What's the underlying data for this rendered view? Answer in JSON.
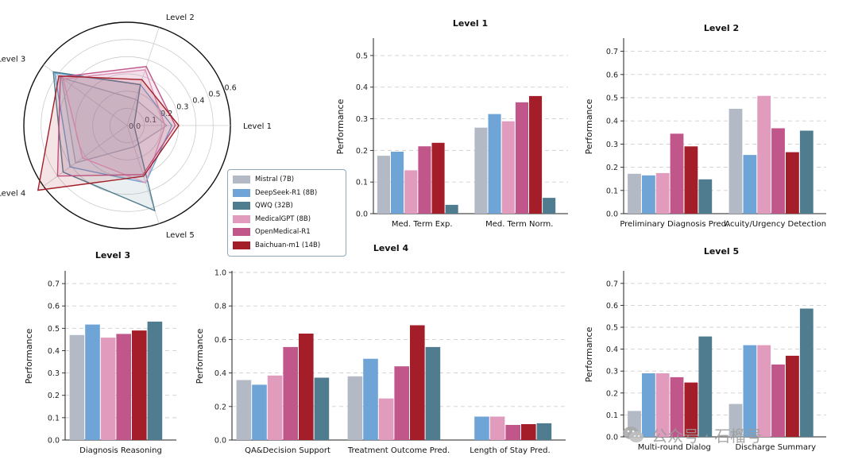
{
  "colors": {
    "Mistral": "#b3bac5",
    "DeepSeek": "#6fa5d6",
    "QWQ": "#4f7d8f",
    "MedicalGPT": "#e09bbd",
    "OpenMedical": "#c0568a",
    "Baichuan": "#a31e28"
  },
  "legend": [
    {
      "label": "Mistral (7B)",
      "color": "#b3bac5"
    },
    {
      "label": "DeepSeek-R1 (8B)",
      "color": "#6fa5d6"
    },
    {
      "label": "QWQ (32B)",
      "color": "#4f7d8f"
    },
    {
      "label": "MedicalGPT (8B)",
      "color": "#e09bbd"
    },
    {
      "label": "OpenMedical-R1",
      "color": "#c0568a"
    },
    {
      "label": "Baichuan-m1 (14B)",
      "color": "#a31e28"
    }
  ],
  "watermark": {
    "text": "公众号 · 石榴号",
    "icon": "wechat-icon"
  },
  "chart_data": [
    {
      "type": "radar",
      "axes": [
        "Level 1",
        "Level 2",
        "Level 3",
        "Level 4",
        "Level 5"
      ],
      "rticks": [
        "0.0",
        "0.1",
        "0.2",
        "0.3",
        "0.4",
        "0.5",
        "0.6"
      ],
      "rlim": [
        0,
        0.6
      ],
      "series": [
        {
          "name": "Mistral (7B)",
          "values": [
            0.23,
            0.16,
            0.47,
            0.37,
            0.13
          ]
        },
        {
          "name": "DeepSeek-R1 (8B)",
          "values": [
            0.26,
            0.25,
            0.52,
            0.41,
            0.35
          ]
        },
        {
          "name": "QWQ (32B)",
          "values": [
            0.04,
            0.25,
            0.53,
            0.46,
            0.52
          ]
        },
        {
          "name": "MedicalGPT (8B)",
          "values": [
            0.22,
            0.34,
            0.46,
            0.32,
            0.35
          ]
        },
        {
          "name": "OpenMedical-R1",
          "values": [
            0.28,
            0.36,
            0.48,
            0.5,
            0.3
          ]
        },
        {
          "name": "Baichuan-m1 (14B)",
          "values": [
            0.3,
            0.28,
            0.49,
            0.64,
            0.31
          ]
        }
      ]
    },
    {
      "type": "bar",
      "title": "Level 1",
      "ylabel": "Performance",
      "ylim": [
        0,
        0.55
      ],
      "yticks": [
        "0.0",
        "0.1",
        "0.2",
        "0.3",
        "0.4",
        "0.5"
      ],
      "categories": [
        "Med. Term Exp.",
        "Med. Term Norm."
      ],
      "series": [
        {
          "name": "Mistral (7B)",
          "values": [
            0.183,
            0.272
          ]
        },
        {
          "name": "DeepSeek-R1 (8B)",
          "values": [
            0.196,
            0.315
          ]
        },
        {
          "name": "MedicalGPT (8B)",
          "values": [
            0.137,
            0.292
          ]
        },
        {
          "name": "OpenMedical-R1",
          "values": [
            0.213,
            0.352
          ]
        },
        {
          "name": "Baichuan-m1 (14B)",
          "values": [
            0.224,
            0.372
          ]
        },
        {
          "name": "QWQ (32B)",
          "values": [
            0.028,
            0.05
          ]
        }
      ]
    },
    {
      "type": "bar",
      "title": "Level 2",
      "ylabel": "Performance",
      "ylim": [
        0,
        0.75
      ],
      "yticks": [
        "0.0",
        "0.1",
        "0.2",
        "0.3",
        "0.4",
        "0.5",
        "0.6",
        "0.7"
      ],
      "categories": [
        "Preliminary Diagnosis Pred.",
        "Acuity/Urgency Detection"
      ],
      "series": [
        {
          "name": "Mistral (7B)",
          "values": [
            0.172,
            0.452
          ]
        },
        {
          "name": "DeepSeek-R1 (8B)",
          "values": [
            0.165,
            0.253
          ]
        },
        {
          "name": "MedicalGPT (8B)",
          "values": [
            0.175,
            0.508
          ]
        },
        {
          "name": "OpenMedical-R1",
          "values": [
            0.345,
            0.368
          ]
        },
        {
          "name": "Baichuan-m1 (14B)",
          "values": [
            0.29,
            0.265
          ]
        },
        {
          "name": "QWQ (32B)",
          "values": [
            0.148,
            0.358
          ]
        }
      ]
    },
    {
      "type": "bar",
      "title": "Level 3",
      "ylabel": "Performance",
      "ylim": [
        0,
        0.75
      ],
      "yticks": [
        "0.0",
        "0.1",
        "0.2",
        "0.3",
        "0.4",
        "0.5",
        "0.6",
        "0.7"
      ],
      "categories": [
        "Diagnosis Reasoning"
      ],
      "series": [
        {
          "name": "Mistral (7B)",
          "values": [
            0.47
          ]
        },
        {
          "name": "DeepSeek-R1 (8B)",
          "values": [
            0.517
          ]
        },
        {
          "name": "MedicalGPT (8B)",
          "values": [
            0.458
          ]
        },
        {
          "name": "OpenMedical-R1",
          "values": [
            0.475
          ]
        },
        {
          "name": "Baichuan-m1 (14B)",
          "values": [
            0.49
          ]
        },
        {
          "name": "QWQ (32B)",
          "values": [
            0.53
          ]
        }
      ]
    },
    {
      "type": "bar",
      "title": "Level 4",
      "ylabel": "Performance",
      "ylim": [
        0,
        1.0
      ],
      "yticks": [
        "0.0",
        "0.2",
        "0.4",
        "0.6",
        "0.8",
        "1.0"
      ],
      "categories": [
        "QA&Decision Support",
        "Treatment Outcome Pred.",
        "Length of Stay Pred."
      ],
      "series": [
        {
          "name": "Mistral (7B)",
          "values": [
            0.358,
            0.38,
            null
          ]
        },
        {
          "name": "DeepSeek-R1 (8B)",
          "values": [
            0.33,
            0.485,
            0.14
          ]
        },
        {
          "name": "MedicalGPT (8B)",
          "values": [
            0.385,
            0.248,
            0.14
          ]
        },
        {
          "name": "OpenMedical-R1",
          "values": [
            0.555,
            0.44,
            0.09
          ]
        },
        {
          "name": "Baichuan-m1 (14B)",
          "values": [
            0.635,
            0.685,
            0.095
          ]
        },
        {
          "name": "QWQ (32B)",
          "values": [
            0.372,
            0.555,
            0.1
          ]
        }
      ]
    },
    {
      "type": "bar",
      "title": "Level 5",
      "ylabel": "Performance",
      "ylim": [
        0,
        0.75
      ],
      "yticks": [
        "0.0",
        "0.1",
        "0.2",
        "0.3",
        "0.4",
        "0.5",
        "0.6",
        "0.7"
      ],
      "categories": [
        "Multi-round Dialog",
        "Discharge Summary"
      ],
      "series": [
        {
          "name": "Mistral (7B)",
          "values": [
            0.118,
            0.15
          ]
        },
        {
          "name": "DeepSeek-R1 (8B)",
          "values": [
            0.29,
            0.418
          ]
        },
        {
          "name": "MedicalGPT (8B)",
          "values": [
            0.29,
            0.418
          ]
        },
        {
          "name": "OpenMedical-R1",
          "values": [
            0.272,
            0.33
          ]
        },
        {
          "name": "Baichuan-m1 (14B)",
          "values": [
            0.248,
            0.37
          ]
        },
        {
          "name": "QWQ (32B)",
          "values": [
            0.458,
            0.585
          ]
        }
      ]
    }
  ]
}
